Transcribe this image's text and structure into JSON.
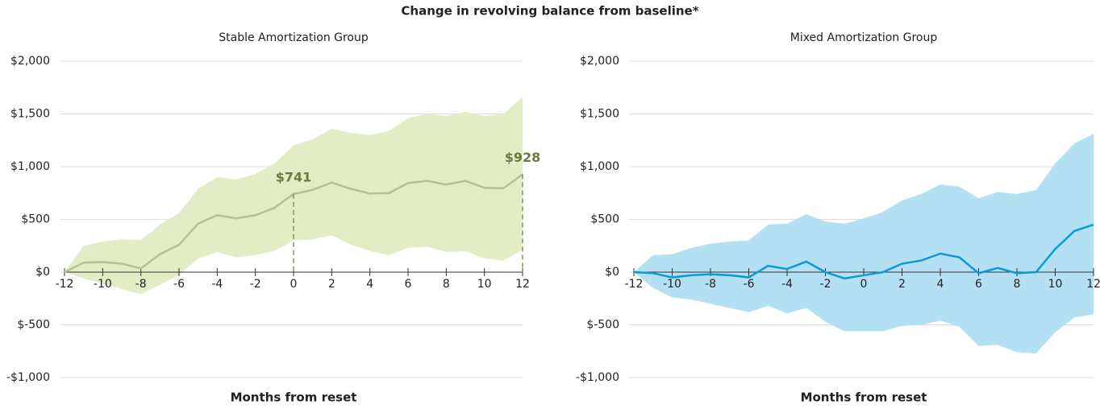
{
  "title": "Change in revolving balance from baseline*",
  "chart_data": [
    {
      "type": "band-line",
      "subtitle": "Stable Amortization Group",
      "xlabel": "Months from reset",
      "x": [
        -12,
        -11,
        -10,
        -9,
        -8,
        -7,
        -6,
        -5,
        -4,
        -3,
        -2,
        -1,
        0,
        1,
        2,
        3,
        4,
        5,
        6,
        7,
        8,
        9,
        10,
        11,
        12
      ],
      "values": [
        0,
        90,
        95,
        80,
        35,
        170,
        260,
        460,
        540,
        510,
        540,
        610,
        741,
        780,
        850,
        790,
        745,
        750,
        845,
        865,
        830,
        865,
        800,
        795,
        928
      ],
      "upper": [
        0,
        250,
        290,
        310,
        305,
        450,
        560,
        790,
        900,
        880,
        930,
        1030,
        1200,
        1260,
        1360,
        1320,
        1300,
        1340,
        1460,
        1500,
        1480,
        1520,
        1480,
        1500,
        1660
      ],
      "lower": [
        0,
        -60,
        -110,
        -160,
        -210,
        -120,
        -30,
        130,
        190,
        140,
        160,
        200,
        300,
        310,
        350,
        260,
        200,
        160,
        230,
        240,
        190,
        200,
        130,
        110,
        210
      ],
      "line_color": "#b5c09a",
      "band_color": "#e2edc6",
      "annotations": [
        {
          "label": "$741",
          "x": 0,
          "value": 741,
          "color": "#6b7a3c"
        },
        {
          "label": "$928",
          "x": 12,
          "value": 928,
          "color": "#6b7a3c"
        }
      ],
      "xlim": [
        -12,
        12
      ],
      "xticks": [
        -12,
        -10,
        -8,
        -6,
        -4,
        -2,
        0,
        2,
        4,
        6,
        8,
        10,
        12
      ],
      "ylim": [
        -1000,
        2000
      ],
      "yticks": [
        {
          "value": -1000,
          "label": "-$1,000"
        },
        {
          "value": -500,
          "label": "$-500"
        },
        {
          "value": 0,
          "label": "$0"
        },
        {
          "value": 500,
          "label": "$500"
        },
        {
          "value": 1000,
          "label": "$1,000"
        },
        {
          "value": 1500,
          "label": "$1,500"
        },
        {
          "value": 2000,
          "label": "$2,000"
        }
      ],
      "grid": true
    },
    {
      "type": "band-line",
      "subtitle": "Mixed Amortization Group",
      "xlabel": "Months from reset",
      "x": [
        -12,
        -11,
        -10,
        -9,
        -8,
        -7,
        -6,
        -5,
        -4,
        -3,
        -2,
        -1,
        0,
        1,
        2,
        3,
        4,
        5,
        6,
        7,
        8,
        9,
        10,
        11,
        12
      ],
      "values": [
        0,
        -10,
        -50,
        -30,
        -20,
        -30,
        -50,
        60,
        30,
        100,
        0,
        -60,
        -30,
        0,
        80,
        110,
        175,
        140,
        -10,
        40,
        -10,
        0,
        220,
        390,
        450
      ],
      "upper": [
        0,
        160,
        170,
        230,
        270,
        290,
        300,
        450,
        460,
        550,
        480,
        460,
        510,
        570,
        680,
        740,
        830,
        810,
        700,
        760,
        740,
        780,
        1030,
        1220,
        1310
      ],
      "lower": [
        0,
        -150,
        -240,
        -260,
        -300,
        -340,
        -380,
        -320,
        -390,
        -340,
        -470,
        -560,
        -560,
        -560,
        -510,
        -500,
        -460,
        -520,
        -700,
        -690,
        -760,
        -770,
        -570,
        -430,
        -400
      ],
      "line_color": "#0a9ad8",
      "band_color": "#b3e0f3",
      "xlim": [
        -12,
        12
      ],
      "xticks": [
        -12,
        -10,
        -8,
        -6,
        -4,
        -2,
        0,
        2,
        4,
        6,
        8,
        10,
        12
      ],
      "ylim": [
        -1000,
        2000
      ],
      "yticks": [
        {
          "value": -1000,
          "label": "-$1,000"
        },
        {
          "value": -500,
          "label": "$-500"
        },
        {
          "value": 0,
          "label": "$0"
        },
        {
          "value": 500,
          "label": "$500"
        },
        {
          "value": 1000,
          "label": "$1,000"
        },
        {
          "value": 1500,
          "label": "$1,500"
        },
        {
          "value": 2000,
          "label": "$2,000"
        }
      ],
      "grid": true
    }
  ]
}
